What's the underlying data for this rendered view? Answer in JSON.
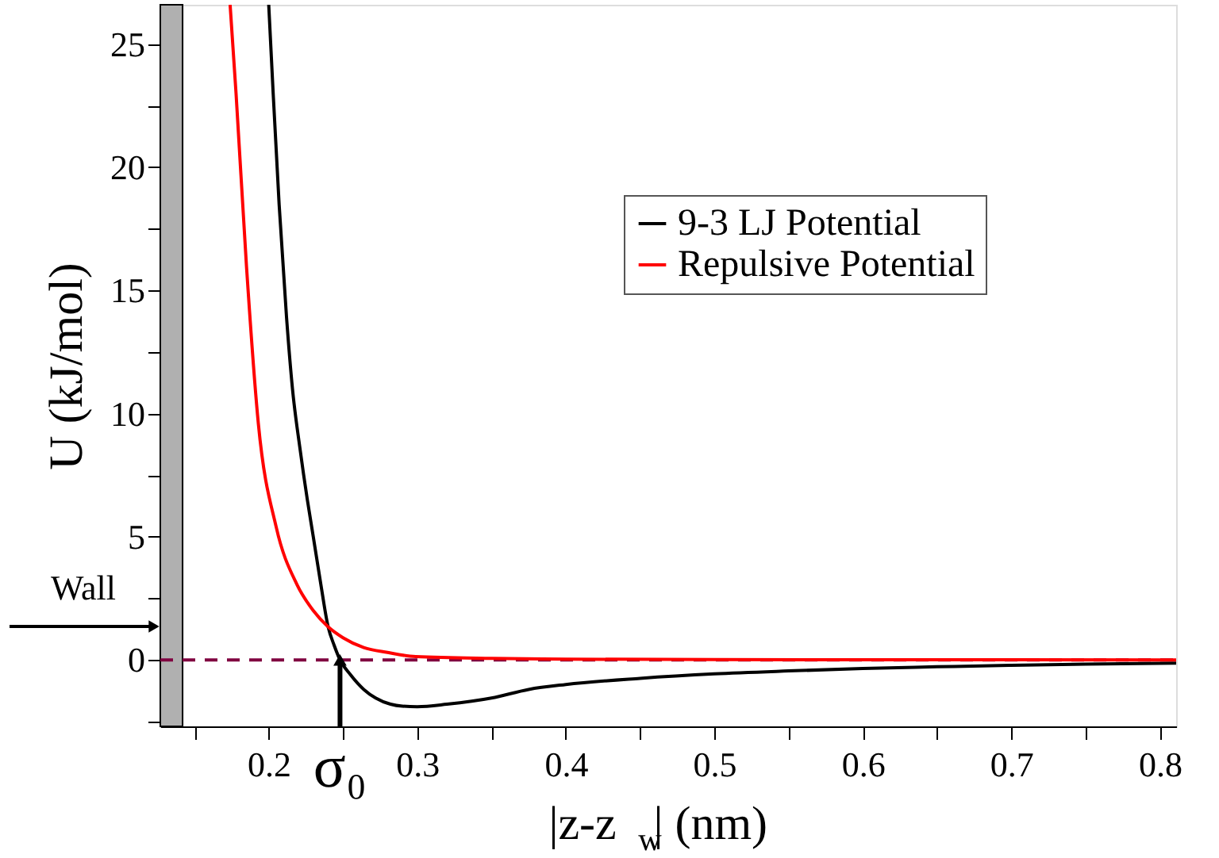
{
  "chart_data": {
    "type": "line",
    "xlabel": "|z-z$_{w}$| (nm)",
    "ylabel": "U (kJ/mol)",
    "xlim": [
      0.127,
      0.811
    ],
    "ylim": [
      -2.7,
      26.6
    ],
    "xticks": [
      {
        "value": 0.15,
        "label": null
      },
      0.2,
      {
        "value": 0.25,
        "label": null
      },
      0.3,
      {
        "value": 0.35,
        "label": null
      },
      0.4,
      {
        "value": 0.45,
        "label": null
      },
      0.5,
      {
        "value": 0.55,
        "label": null
      },
      0.6,
      {
        "value": 0.65,
        "label": null
      },
      0.7,
      {
        "value": 0.75,
        "label": null
      },
      0.8
    ],
    "yticks": [
      {
        "value": -2.5,
        "label": null
      },
      0,
      {
        "value": 2.5,
        "label": null
      },
      5,
      {
        "value": 7.5,
        "label": null
      },
      10,
      {
        "value": 12.5,
        "label": null
      },
      15,
      {
        "value": 17.5,
        "label": null
      },
      20,
      {
        "value": 22.5,
        "label": null
      },
      25
    ],
    "series": [
      {
        "name": "9-3 LJ Potential",
        "color": "#000000",
        "x": [
          0.2,
          0.203,
          0.207,
          0.212,
          0.216,
          0.221,
          0.226,
          0.23,
          0.235,
          0.24,
          0.244,
          0.248,
          0.255,
          0.264,
          0.272,
          0.282,
          0.29,
          0.3,
          0.32,
          0.35,
          0.375,
          0.4,
          0.45,
          0.5,
          0.55,
          0.6,
          0.65,
          0.7,
          0.75,
          0.811
        ],
        "values": [
          26.6,
          23.0,
          18.5,
          13.9,
          11.0,
          8.6,
          6.5,
          5.0,
          3.1,
          1.34,
          0.6,
          0,
          -0.6,
          -1.2,
          -1.55,
          -1.8,
          -1.88,
          -1.9,
          -1.8,
          -1.55,
          -1.2,
          -1.0,
          -0.75,
          -0.57,
          -0.45,
          -0.35,
          -0.28,
          -0.22,
          -0.17,
          -0.13
        ]
      },
      {
        "name": "Repulsive Potential",
        "color": "#ff0000",
        "x": [
          0.174,
          0.178,
          0.185,
          0.193,
          0.205,
          0.219,
          0.23,
          0.24,
          0.25,
          0.264,
          0.28,
          0.299,
          0.35,
          0.4,
          0.5,
          0.811
        ],
        "values": [
          26.6,
          23.0,
          16.0,
          9.6,
          5.4,
          3.06,
          2.0,
          1.34,
          0.9,
          0.5,
          0.3,
          0.13,
          0.06,
          0.03,
          0.01,
          0
        ]
      }
    ],
    "ref_lines": [
      {
        "axis": "y",
        "value": 0,
        "color": "#800040",
        "line_style": "dashed"
      }
    ],
    "bands": [
      {
        "axis": "x",
        "from": 0.127,
        "to": 0.142,
        "label": "Wall",
        "color": "#b0b0b0"
      }
    ],
    "annotations": [
      {
        "text": "σ₀",
        "x": 0.248,
        "y": 0
      }
    ],
    "legend": "top right",
    "grid": false,
    "line_style": "solid",
    "marker": "none"
  }
}
